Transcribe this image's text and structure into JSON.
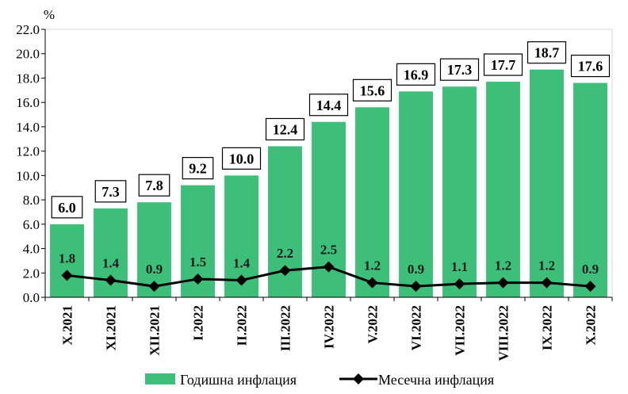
{
  "chart_data": {
    "type": "bar",
    "title": "",
    "unit_label": "%",
    "categories": [
      "X.2021",
      "XI.2021",
      "XII.2021",
      "I.2022",
      "II.2022",
      "III.2022",
      "IV.2022",
      "V.2022",
      "VI.2022",
      "VII.2022",
      "VIII.2022",
      "IX.2022",
      "X.2022"
    ],
    "series": [
      {
        "name": "Годишна инфлация",
        "type": "bar",
        "color": "#3dbf7a",
        "values": [
          6.0,
          7.3,
          7.8,
          9.2,
          10.0,
          12.4,
          14.4,
          15.6,
          16.9,
          17.3,
          17.7,
          18.7,
          17.6
        ]
      },
      {
        "name": "Месечна инфлация",
        "type": "line",
        "color": "#000000",
        "marker": "diamond",
        "values": [
          1.8,
          1.4,
          0.9,
          1.5,
          1.4,
          2.2,
          2.5,
          1.2,
          0.9,
          1.1,
          1.2,
          1.2,
          0.9
        ]
      }
    ],
    "ylim": [
      0,
      22
    ],
    "yticks": [
      "0.0",
      "2.0",
      "4.0",
      "6.0",
      "8.0",
      "10.0",
      "12.0",
      "14.0",
      "16.0",
      "18.0",
      "20.0",
      "22.0"
    ],
    "grid": false,
    "legend_position": "bottom"
  }
}
